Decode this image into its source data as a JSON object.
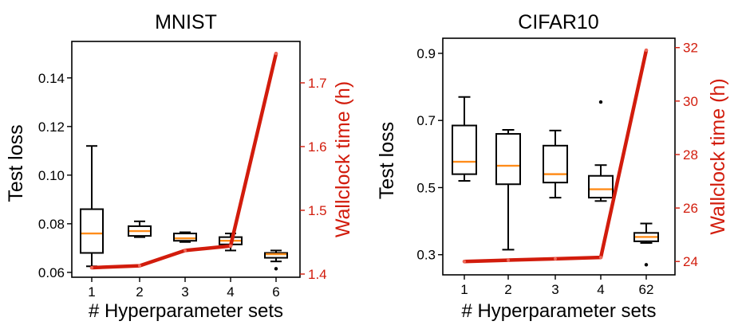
{
  "colors": {
    "median": "#ff8c1a",
    "line": "#d21c0c",
    "right_axis": "#d21c0c",
    "box": "#000000"
  },
  "chart_data": [
    {
      "type": "box+line",
      "title": "MNIST",
      "xlabel": "# Hyperparameter sets",
      "ylabel": "Test loss",
      "y2label": "Wallclock time (h)",
      "categories": [
        "1",
        "2",
        "3",
        "4",
        "6"
      ],
      "ylim": [
        0.058,
        0.155
      ],
      "yticks": [
        0.06,
        0.08,
        0.1,
        0.12,
        0.14
      ],
      "ytick_labels": [
        "0.06",
        "0.08",
        "0.10",
        "0.12",
        "0.14"
      ],
      "y2lim": [
        1.395,
        1.765
      ],
      "y2ticks": [
        1.4,
        1.5,
        1.6,
        1.7
      ],
      "y2tick_labels": [
        "1.4",
        "1.5",
        "1.6",
        "1.7"
      ],
      "boxes": [
        {
          "whislo": 0.0625,
          "q1": 0.068,
          "med": 0.076,
          "q3": 0.086,
          "whishi": 0.112,
          "fliers": []
        },
        {
          "whislo": 0.0745,
          "q1": 0.075,
          "med": 0.077,
          "q3": 0.079,
          "whishi": 0.081,
          "fliers": []
        },
        {
          "whislo": 0.0725,
          "q1": 0.073,
          "med": 0.074,
          "q3": 0.076,
          "whishi": 0.0765,
          "fliers": []
        },
        {
          "whislo": 0.069,
          "q1": 0.0715,
          "med": 0.073,
          "q3": 0.0745,
          "whishi": 0.076,
          "fliers": []
        },
        {
          "whislo": 0.0645,
          "q1": 0.066,
          "med": 0.0675,
          "q3": 0.068,
          "whishi": 0.069,
          "fliers": [
            0.0615
          ]
        }
      ],
      "wallclock": [
        1.41,
        1.413,
        1.437,
        1.444,
        1.746
      ]
    },
    {
      "type": "box+line",
      "title": "CIFAR10",
      "xlabel": "# Hyperparameter sets",
      "ylabel": "Test loss",
      "y2label": "Wallclock time (h)",
      "categories": [
        "1",
        "2",
        "3",
        "4",
        "62"
      ],
      "ylim": [
        0.24,
        0.945
      ],
      "yticks": [
        0.3,
        0.5,
        0.7,
        0.9
      ],
      "ytick_labels": [
        "0.3",
        "0.5",
        "0.7",
        "0.9"
      ],
      "y2lim": [
        23.5,
        32.35
      ],
      "y2ticks": [
        24,
        26,
        28,
        30,
        32
      ],
      "y2tick_labels": [
        "24",
        "26",
        "28",
        "30",
        "32"
      ],
      "boxes": [
        {
          "whislo": 0.52,
          "q1": 0.54,
          "med": 0.577,
          "q3": 0.685,
          "whishi": 0.77,
          "fliers": []
        },
        {
          "whislo": 0.315,
          "q1": 0.51,
          "med": 0.565,
          "q3": 0.66,
          "whishi": 0.672,
          "fliers": []
        },
        {
          "whislo": 0.47,
          "q1": 0.515,
          "med": 0.54,
          "q3": 0.625,
          "whishi": 0.67,
          "fliers": []
        },
        {
          "whislo": 0.46,
          "q1": 0.47,
          "med": 0.495,
          "q3": 0.535,
          "whishi": 0.567,
          "fliers": [
            0.755
          ]
        },
        {
          "whislo": 0.335,
          "q1": 0.34,
          "med": 0.353,
          "q3": 0.365,
          "whishi": 0.393,
          "fliers": [
            0.27
          ]
        }
      ],
      "wallclock": [
        24.0,
        24.05,
        24.1,
        24.15,
        31.9
      ]
    }
  ]
}
